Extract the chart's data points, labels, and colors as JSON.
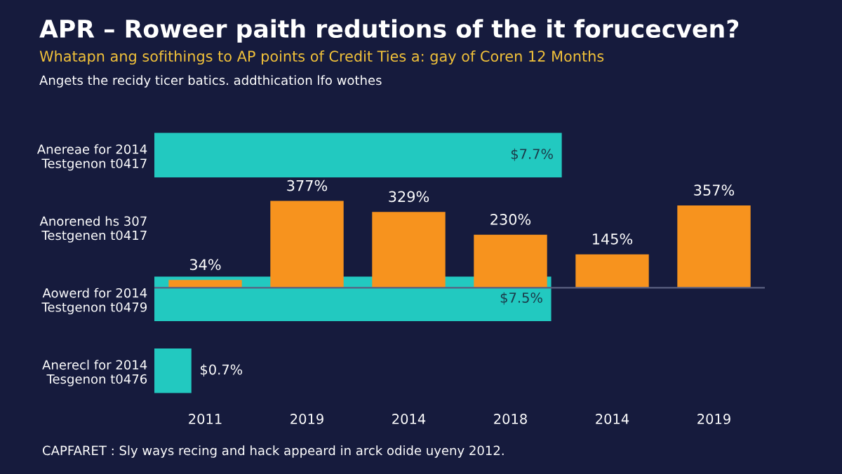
{
  "chart_data": [
    {
      "type": "bar",
      "orientation": "horizontal",
      "title": "APR – Roweer paith redutions of the it forucecven?",
      "subtitle": "Whatapn ang sofithings to AP points of Credit Ties a: gay of Coren 12 Months",
      "annotations": [
        "Angets the recidy ticer batics. addthication lfo wothes",
        "CAPFARET : Sly ways recing and hack appeard in arck odide uyeny 2012."
      ],
      "categories": [
        "Anereae for 2014\nTestgenon t0417",
        "Anorened hs 307\nTestgenen t0417",
        "Aowerd for 2014\nTestgenon t0479",
        "Anerecl for 2014\nTesgenon t0476"
      ],
      "values": [
        7.7,
        null,
        7.5,
        0.7
      ],
      "value_labels": [
        "$7.7%",
        null,
        "$7.5%",
        "$0.7%"
      ],
      "color": "#22c9c0"
    },
    {
      "type": "bar",
      "categories": [
        "2011",
        "2019",
        "2014",
        "2018",
        "2014",
        "2019"
      ],
      "values": [
        34,
        377,
        329,
        230,
        145,
        357
      ],
      "value_labels": [
        "34%",
        "377%",
        "329%",
        "230%",
        "145%",
        "357%"
      ],
      "color": "#f7931e"
    }
  ]
}
